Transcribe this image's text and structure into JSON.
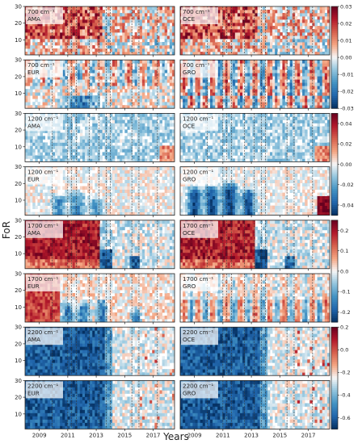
{
  "chart_data": {
    "type": "heatmap",
    "xlabel": "Years",
    "ylabel": "FoR",
    "x_ticks": [
      "2009",
      "2011",
      "2013",
      "2015",
      "2017"
    ],
    "x_tick_values": [
      2009,
      2011,
      2013,
      2015,
      2017
    ],
    "xlim": [
      2008.0,
      2018.5
    ],
    "ylim": [
      1,
      30
    ],
    "y_ticks": [
      10,
      20,
      30
    ],
    "colormap": [
      "#053061",
      "#2166ac",
      "#4393c3",
      "#92c5de",
      "#f7f7f7",
      "#f4a582",
      "#d6604d",
      "#b2182b",
      "#67001f"
    ],
    "rows": [
      {
        "colorbar": {
          "range": [
            -0.03,
            0.03
          ],
          "ticks": [
            "0.03",
            "0.02",
            "0.01",
            "0.00",
            "-0.01",
            "-0.02",
            "-0.03"
          ],
          "tick_values": [
            0.03,
            0.02,
            0.01,
            0.0,
            -0.01,
            -0.02,
            -0.03
          ]
        },
        "panels": [
          {
            "wavenumber": "700 cm⁻¹",
            "region": "AMA",
            "summary": "positive anomalies above FoR 10, strongest 2009-2013"
          },
          {
            "wavenumber": "700 cm⁻¹",
            "region": "OCE",
            "summary": "positive anomalies above FoR 10, strongest 2009-2013"
          }
        ]
      },
      {
        "colorbar": null,
        "panels": [
          {
            "wavenumber": "700 cm⁻¹",
            "region": "EUR",
            "summary": "negative at low FoR, positive stripes at high FoR"
          },
          {
            "wavenumber": "700 cm⁻¹",
            "region": "GRO",
            "summary": "alternating positive/negative stripes"
          }
        ]
      },
      {
        "colorbar": {
          "range": [
            -0.05,
            0.05
          ],
          "ticks": [
            "0.04",
            "0.02",
            "0.00",
            "-0.02",
            "-0.04"
          ],
          "tick_values": [
            0.04,
            0.02,
            0.0,
            -0.02,
            -0.04
          ]
        },
        "panels": [
          {
            "wavenumber": "1200 cm⁻¹",
            "region": "AMA",
            "summary": "weak negative anomalies"
          },
          {
            "wavenumber": "1200 cm⁻¹",
            "region": "OCE",
            "summary": "weak negative anomalies"
          }
        ]
      },
      {
        "colorbar": null,
        "panels": [
          {
            "wavenumber": "1200 cm⁻¹",
            "region": "EUR",
            "summary": "negative plumes at low FoR"
          },
          {
            "wavenumber": "1200 cm⁻¹",
            "region": "GRO",
            "summary": "strong negative plumes, strong positive after 2017"
          }
        ]
      },
      {
        "colorbar": {
          "range": [
            -0.25,
            0.25
          ],
          "ticks": [
            "0.2",
            "0.1",
            "0.0",
            "-0.1",
            "-0.2"
          ],
          "tick_values": [
            0.2,
            0.1,
            0.0,
            -0.1,
            -0.2
          ]
        },
        "panels": [
          {
            "wavenumber": "1700 cm⁻¹",
            "region": "AMA",
            "summary": "strong positive before 2013, negative after 2013"
          },
          {
            "wavenumber": "1700 cm⁻¹",
            "region": "OCE",
            "summary": "strong positive before 2013, negative after 2013"
          }
        ]
      },
      {
        "colorbar": null,
        "panels": [
          {
            "wavenumber": "1700 cm⁻¹",
            "region": "EUR",
            "summary": "positive early, negative plumes later"
          },
          {
            "wavenumber": "1700 cm⁻¹",
            "region": "GRO",
            "summary": "alternating plumes"
          }
        ]
      },
      {
        "colorbar": {
          "range": [
            -0.7,
            0.2
          ],
          "ticks": [
            "0.2",
            "0.0",
            "-0.2",
            "-0.4",
            "-0.6"
          ],
          "tick_values": [
            0.2,
            0.0,
            -0.2,
            -0.4,
            -0.6
          ]
        },
        "panels": [
          {
            "wavenumber": "2200 cm⁻¹",
            "region": "AMA",
            "summary": "strongly negative 2008-2013, weak after"
          },
          {
            "wavenumber": "2200 cm⁻¹",
            "region": "OCE",
            "summary": "strongly negative 2008-2013, weak after"
          }
        ]
      },
      {
        "colorbar": null,
        "panels": [
          {
            "wavenumber": "2200 cm⁻¹",
            "region": "EUR",
            "summary": "strongly negative 2008-2013, weak after"
          },
          {
            "wavenumber": "2200 cm⁻¹",
            "region": "GRO",
            "summary": "strongly negative 2008-2013, weak after"
          }
        ]
      }
    ],
    "dashed_lines_years": [
      2009.9,
      2011.0,
      2011.25,
      2011.6,
      2012.5,
      2013.2,
      2013.7,
      2014.0,
      2015.5,
      2016.0,
      2017.3
    ]
  }
}
